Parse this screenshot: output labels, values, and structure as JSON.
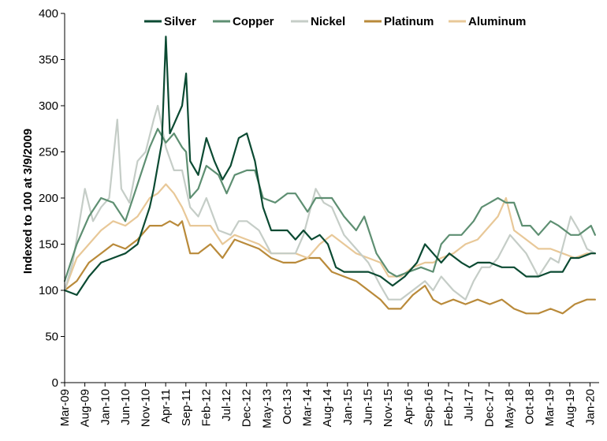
{
  "chart_data": {
    "type": "line",
    "title": "",
    "xlabel": "",
    "ylabel": "Indexed to 100 at 3/9/2009",
    "ylim": [
      0,
      400
    ],
    "yticks": [
      0,
      50,
      100,
      150,
      200,
      250,
      300,
      350,
      400
    ],
    "xlim": [
      "2009-03",
      "2020-03"
    ],
    "xtick_labels": [
      "Mar-09",
      "Aug-09",
      "Jan-10",
      "Jun-10",
      "Nov-10",
      "Apr-11",
      "Sep-11",
      "Feb-12",
      "Jul-12",
      "Dec-12",
      "May-13",
      "Oct-13",
      "Mar-14",
      "Aug-14",
      "Jan-15",
      "Jun-15",
      "Nov-15",
      "Apr-16",
      "Sep-16",
      "Feb-17",
      "Jul-17",
      "Dec-17",
      "May-18",
      "Oct-18",
      "Mar-19",
      "Aug-19",
      "Jan-20"
    ],
    "grid": false,
    "legend": "top",
    "series": [
      {
        "name": "Silver",
        "color": "#0b4a32",
        "x": [
          "2009-03",
          "2009-06",
          "2009-09",
          "2009-12",
          "2010-03",
          "2010-06",
          "2010-09",
          "2010-12",
          "2011-01",
          "2011-03",
          "2011-04",
          "2011-05",
          "2011-06",
          "2011-08",
          "2011-09",
          "2011-10",
          "2011-12",
          "2012-02",
          "2012-04",
          "2012-06",
          "2012-08",
          "2012-10",
          "2012-12",
          "2013-02",
          "2013-04",
          "2013-06",
          "2013-08",
          "2013-10",
          "2013-12",
          "2014-02",
          "2014-04",
          "2014-06",
          "2014-08",
          "2014-10",
          "2014-12",
          "2015-03",
          "2015-06",
          "2015-09",
          "2015-12",
          "2016-03",
          "2016-06",
          "2016-08",
          "2016-10",
          "2016-12",
          "2017-02",
          "2017-05",
          "2017-07",
          "2017-09",
          "2017-12",
          "2018-03",
          "2018-06",
          "2018-09",
          "2018-12",
          "2019-03",
          "2019-06",
          "2019-08",
          "2019-10",
          "2020-01",
          "2020-02"
        ],
        "y": [
          100,
          95,
          115,
          130,
          135,
          140,
          150,
          190,
          210,
          260,
          375,
          270,
          280,
          300,
          335,
          240,
          225,
          265,
          240,
          220,
          235,
          265,
          270,
          240,
          190,
          165,
          165,
          165,
          155,
          165,
          155,
          160,
          150,
          125,
          120,
          120,
          120,
          115,
          105,
          115,
          130,
          150,
          140,
          130,
          140,
          130,
          125,
          130,
          130,
          125,
          125,
          115,
          115,
          120,
          120,
          135,
          135,
          140,
          140
        ]
      },
      {
        "name": "Copper",
        "color": "#5e8f72",
        "x": [
          "2009-03",
          "2009-06",
          "2009-09",
          "2009-12",
          "2010-03",
          "2010-06",
          "2010-09",
          "2010-12",
          "2011-02",
          "2011-04",
          "2011-06",
          "2011-08",
          "2011-09",
          "2011-10",
          "2011-12",
          "2012-02",
          "2012-05",
          "2012-07",
          "2012-09",
          "2012-12",
          "2013-02",
          "2013-04",
          "2013-07",
          "2013-10",
          "2013-12",
          "2014-03",
          "2014-05",
          "2014-07",
          "2014-09",
          "2014-12",
          "2015-03",
          "2015-05",
          "2015-08",
          "2015-11",
          "2016-01",
          "2016-04",
          "2016-07",
          "2016-10",
          "2016-12",
          "2017-02",
          "2017-05",
          "2017-08",
          "2017-10",
          "2017-12",
          "2018-02",
          "2018-04",
          "2018-06",
          "2018-08",
          "2018-10",
          "2018-12",
          "2019-03",
          "2019-05",
          "2019-08",
          "2019-10",
          "2020-01",
          "2020-02"
        ],
        "y": [
          110,
          150,
          180,
          200,
          195,
          175,
          215,
          255,
          275,
          260,
          270,
          255,
          250,
          200,
          210,
          235,
          225,
          205,
          225,
          230,
          230,
          200,
          195,
          205,
          205,
          185,
          200,
          200,
          200,
          180,
          165,
          180,
          140,
          120,
          115,
          120,
          125,
          120,
          150,
          160,
          160,
          175,
          190,
          195,
          200,
          195,
          195,
          170,
          170,
          160,
          175,
          170,
          160,
          160,
          170,
          160
        ]
      },
      {
        "name": "Nickel",
        "color": "#c5cdc7",
        "x": [
          "2009-03",
          "2009-05",
          "2009-08",
          "2009-10",
          "2009-12",
          "2010-02",
          "2010-04",
          "2010-05",
          "2010-07",
          "2010-09",
          "2010-11",
          "2011-01",
          "2011-02",
          "2011-04",
          "2011-06",
          "2011-08",
          "2011-10",
          "2011-12",
          "2012-02",
          "2012-05",
          "2012-08",
          "2012-10",
          "2012-12",
          "2013-03",
          "2013-06",
          "2013-09",
          "2013-12",
          "2014-02",
          "2014-05",
          "2014-07",
          "2014-09",
          "2014-12",
          "2015-03",
          "2015-06",
          "2015-09",
          "2015-11",
          "2016-02",
          "2016-05",
          "2016-08",
          "2016-10",
          "2016-12",
          "2017-03",
          "2017-06",
          "2017-08",
          "2017-10",
          "2017-12",
          "2018-02",
          "2018-05",
          "2018-07",
          "2018-09",
          "2018-12",
          "2019-03",
          "2019-05",
          "2019-08",
          "2019-10",
          "2019-12",
          "2020-02"
        ],
        "y": [
          100,
          130,
          210,
          175,
          190,
          200,
          285,
          210,
          195,
          240,
          250,
          285,
          300,
          255,
          230,
          230,
          190,
          180,
          200,
          165,
          160,
          175,
          175,
          165,
          140,
          140,
          140,
          160,
          210,
          195,
          190,
          160,
          145,
          130,
          105,
          90,
          90,
          100,
          110,
          100,
          115,
          100,
          90,
          110,
          125,
          125,
          135,
          160,
          150,
          140,
          115,
          135,
          130,
          180,
          165,
          145,
          140
        ]
      },
      {
        "name": "Platinum",
        "color": "#b98a3a",
        "x": [
          "2009-03",
          "2009-06",
          "2009-09",
          "2009-12",
          "2010-03",
          "2010-06",
          "2010-09",
          "2010-12",
          "2011-03",
          "2011-05",
          "2011-07",
          "2011-08",
          "2011-10",
          "2011-12",
          "2012-03",
          "2012-06",
          "2012-09",
          "2012-12",
          "2013-03",
          "2013-06",
          "2013-09",
          "2013-12",
          "2014-03",
          "2014-06",
          "2014-09",
          "2014-12",
          "2015-03",
          "2015-06",
          "2015-09",
          "2015-11",
          "2016-02",
          "2016-05",
          "2016-08",
          "2016-10",
          "2016-12",
          "2017-03",
          "2017-06",
          "2017-09",
          "2017-12",
          "2018-03",
          "2018-06",
          "2018-09",
          "2018-12",
          "2019-03",
          "2019-06",
          "2019-09",
          "2019-12",
          "2020-02"
        ],
        "y": [
          100,
          110,
          130,
          140,
          150,
          145,
          155,
          170,
          170,
          175,
          170,
          175,
          140,
          140,
          150,
          135,
          155,
          150,
          145,
          135,
          130,
          130,
          135,
          135,
          120,
          115,
          110,
          100,
          90,
          80,
          80,
          95,
          105,
          90,
          85,
          90,
          85,
          90,
          85,
          90,
          80,
          75,
          75,
          80,
          75,
          85,
          90,
          90
        ]
      },
      {
        "name": "Aluminum",
        "color": "#e8c898",
        "x": [
          "2009-03",
          "2009-06",
          "2009-09",
          "2009-12",
          "2010-03",
          "2010-06",
          "2010-09",
          "2010-12",
          "2011-02",
          "2011-04",
          "2011-06",
          "2011-08",
          "2011-10",
          "2011-12",
          "2012-03",
          "2012-06",
          "2012-09",
          "2012-12",
          "2013-03",
          "2013-06",
          "2013-09",
          "2013-12",
          "2014-03",
          "2014-06",
          "2014-09",
          "2014-12",
          "2015-03",
          "2015-06",
          "2015-09",
          "2015-11",
          "2016-02",
          "2016-05",
          "2016-08",
          "2016-10",
          "2016-12",
          "2017-03",
          "2017-06",
          "2017-09",
          "2017-12",
          "2018-02",
          "2018-04",
          "2018-06",
          "2018-09",
          "2018-12",
          "2019-03",
          "2019-06",
          "2019-09",
          "2019-12",
          "2020-02"
        ],
        "y": [
          100,
          135,
          150,
          165,
          175,
          170,
          180,
          200,
          205,
          215,
          205,
          190,
          170,
          170,
          170,
          150,
          160,
          155,
          150,
          140,
          140,
          140,
          135,
          150,
          160,
          150,
          140,
          135,
          130,
          115,
          115,
          125,
          130,
          130,
          135,
          140,
          150,
          155,
          170,
          180,
          200,
          165,
          155,
          145,
          145,
          140,
          135,
          140,
          140
        ]
      }
    ]
  }
}
